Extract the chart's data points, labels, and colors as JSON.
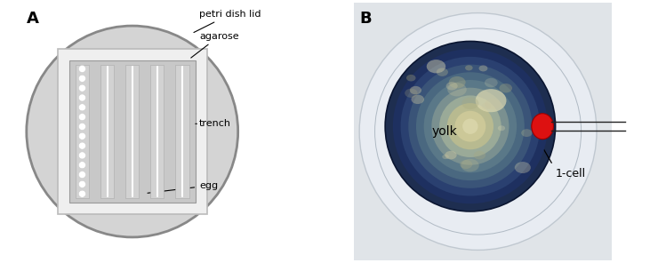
{
  "panel_A_label": "A",
  "panel_B_label": "B",
  "bg_color": "#ffffff",
  "dish_color": "#d4d4d4",
  "dish_border": "#888888",
  "dish_border_lw": 2.0,
  "plate_outer_color": "#efefef",
  "plate_outer_border": "#bbbbbb",
  "plate_inner_color": "#c8c8c8",
  "plate_inner_border": "#999999",
  "trench_color": "#d2d2d2",
  "label_petri": "petri dish lid",
  "label_agarose": "agarose",
  "label_trench": "trench",
  "label_egg": "egg",
  "label_yolk": "yolk",
  "label_1cell": "1-cell",
  "n_trenches": 5,
  "n_eggs_per_trench": 14,
  "annotation_fontsize": 8,
  "panel_label_fontsize": 13
}
